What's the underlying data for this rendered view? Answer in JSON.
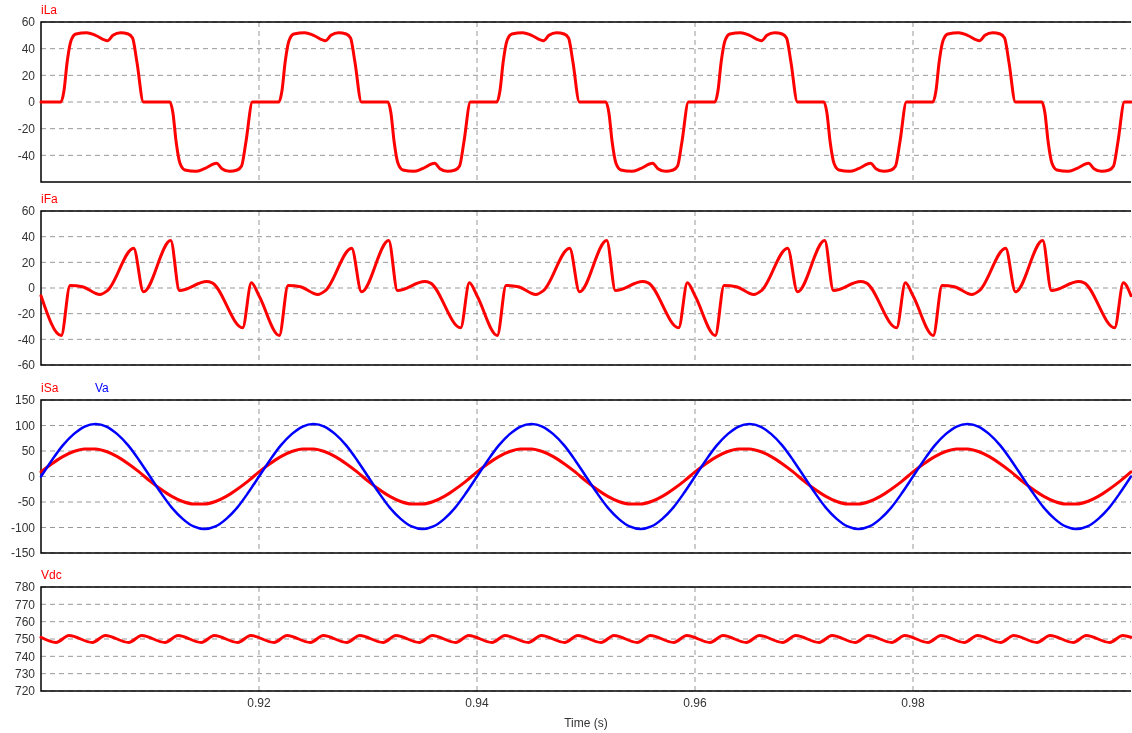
{
  "chart_data": [
    {
      "type": "line",
      "xlim": [
        0.9,
        1.0
      ],
      "xticks": [
        0.92,
        0.94,
        0.96,
        0.98
      ],
      "ylim": [
        -60,
        60
      ],
      "yticks": [
        -40,
        -20,
        0,
        20,
        40,
        60
      ],
      "grid": true,
      "legend": "top left",
      "tick_labels": "y",
      "series": [
        {
          "name": "iLa",
          "color": "#ff0000",
          "x": [
            0.9,
            0.90183,
            0.9021,
            0.9024,
            0.90275,
            0.9032,
            0.9042,
            0.905,
            0.9061,
            0.9066,
            0.9073,
            0.908,
            0.9084,
            0.9088,
            0.9094,
            0.91183,
            0.9121,
            0.9124,
            0.91275,
            0.9132,
            0.9142,
            0.915,
            0.9161,
            0.9166,
            0.9173,
            0.918,
            0.9184,
            0.9188,
            0.9194,
            0.92,
            0.92183,
            0.9221,
            0.9224,
            0.92275,
            0.9232,
            0.9242,
            0.925,
            0.9261,
            0.9266,
            0.9273,
            0.928,
            0.9284,
            0.9288,
            0.9294,
            0.93183,
            0.9321,
            0.9324,
            0.93275,
            0.9332,
            0.9342,
            0.935,
            0.9361,
            0.9366,
            0.9373,
            0.938,
            0.9384,
            0.9388,
            0.9394,
            0.94,
            0.94183,
            0.9421,
            0.9424,
            0.94275,
            0.9432,
            0.9442,
            0.945,
            0.9461,
            0.9466,
            0.9473,
            0.948,
            0.9484,
            0.9488,
            0.9494,
            0.95183,
            0.9521,
            0.9524,
            0.95275,
            0.9532,
            0.9542,
            0.955,
            0.9561,
            0.9566,
            0.9573,
            0.958,
            0.9584,
            0.9588,
            0.9594,
            0.96,
            0.96183,
            0.9621,
            0.9624,
            0.96275,
            0.9632,
            0.9642,
            0.965,
            0.9661,
            0.9666,
            0.9673,
            0.968,
            0.9684,
            0.9688,
            0.9694,
            0.97183,
            0.9721,
            0.9724,
            0.97275,
            0.9732,
            0.9742,
            0.975,
            0.9761,
            0.9766,
            0.9773,
            0.978,
            0.9784,
            0.9788,
            0.9794,
            0.98,
            0.98183,
            0.9821,
            0.9824,
            0.98275,
            0.9832,
            0.9842,
            0.985,
            0.9861,
            0.9866,
            0.9873,
            0.988,
            0.9884,
            0.9888,
            0.9894,
            0.99183,
            0.9921,
            0.9924,
            0.99275,
            0.9932,
            0.9942,
            0.995,
            0.9961,
            0.9966,
            0.9973,
            0.998,
            0.9984,
            0.9988,
            0.9994,
            1.0
          ],
          "values": [
            0,
            0,
            8,
            30,
            46,
            51,
            52,
            50,
            46,
            50,
            52,
            51,
            48,
            30,
            0,
            0,
            -8,
            -30,
            -46,
            -51,
            -52,
            -50,
            -46,
            -50,
            -52,
            -51,
            -48,
            -30,
            0,
            0,
            0,
            8,
            30,
            46,
            51,
            52,
            50,
            46,
            50,
            52,
            51,
            48,
            30,
            0,
            0,
            -8,
            -30,
            -46,
            -51,
            -52,
            -50,
            -46,
            -50,
            -52,
            -51,
            -48,
            -30,
            0,
            0,
            0,
            8,
            30,
            46,
            51,
            52,
            50,
            46,
            50,
            52,
            51,
            48,
            30,
            0,
            0,
            -8,
            -30,
            -46,
            -51,
            -52,
            -50,
            -46,
            -50,
            -52,
            -51,
            -48,
            -30,
            0,
            0,
            0,
            8,
            30,
            46,
            51,
            52,
            50,
            46,
            50,
            52,
            51,
            48,
            30,
            0,
            0,
            -8,
            -30,
            -46,
            -51,
            -52,
            -50,
            -46,
            -50,
            -52,
            -51,
            -48,
            -30,
            0,
            0,
            0,
            8,
            30,
            46,
            51,
            52,
            50,
            46,
            50,
            52,
            51,
            48,
            30,
            0,
            0,
            -8,
            -30,
            -46,
            -51,
            -52,
            -50,
            -46,
            -50,
            -52,
            -51,
            -48,
            -30,
            0,
            0
          ]
        }
      ]
    },
    {
      "type": "line",
      "xlim": [
        0.9,
        1.0
      ],
      "xticks": [
        0.92,
        0.94,
        0.96,
        0.98
      ],
      "ylim": [
        -60,
        60
      ],
      "yticks": [
        -60,
        -40,
        -20,
        0,
        20,
        40,
        60
      ],
      "grid": true,
      "legend": "top left",
      "tick_labels": "y",
      "series": [
        {
          "name": "iFa",
          "color": "#ff0000",
          "x": [
            0.9,
            0.90186,
            0.90267,
            0.9038,
            0.9054,
            0.9061,
            0.9085,
            0.9094,
            0.9119,
            0.9127,
            0.9152,
            0.9157,
            0.9185,
            0.9193,
            0.92,
            0.92186,
            0.92267,
            0.9238,
            0.9254,
            0.9261,
            0.9285,
            0.9294,
            0.9319,
            0.9327,
            0.9352,
            0.9357,
            0.9385,
            0.9393,
            0.94,
            0.94186,
            0.94267,
            0.9438,
            0.9454,
            0.9461,
            0.9485,
            0.9494,
            0.9519,
            0.9527,
            0.9552,
            0.9557,
            0.9585,
            0.9593,
            0.96,
            0.96186,
            0.96267,
            0.9638,
            0.9654,
            0.9661,
            0.9685,
            0.9694,
            0.9719,
            0.9727,
            0.9752,
            0.9757,
            0.9785,
            0.9793,
            0.98,
            0.98186,
            0.98267,
            0.9838,
            0.9854,
            0.9861,
            0.9885,
            0.9894,
            0.9919,
            0.9927,
            0.9952,
            0.9957,
            0.9985,
            0.9993,
            1.0
          ],
          "values": [
            -6,
            -37,
            2,
            1,
            -5,
            -2,
            31,
            -3,
            37,
            -2,
            5,
            4,
            -31,
            4,
            -6,
            -37,
            2,
            1,
            -5,
            -2,
            31,
            -3,
            37,
            -2,
            5,
            4,
            -31,
            4,
            -6,
            -37,
            2,
            1,
            -5,
            -2,
            31,
            -3,
            37,
            -2,
            5,
            4,
            -31,
            4,
            -6,
            -37,
            2,
            1,
            -5,
            -2,
            31,
            -3,
            37,
            -2,
            5,
            4,
            -31,
            4,
            -6,
            -37,
            2,
            1,
            -5,
            -2,
            31,
            -3,
            37,
            -2,
            5,
            4,
            -31,
            4,
            -6
          ]
        }
      ]
    },
    {
      "type": "line",
      "xlim": [
        0.9,
        1.0
      ],
      "xticks": [
        0.92,
        0.94,
        0.96,
        0.98
      ],
      "ylim": [
        -150,
        150
      ],
      "yticks": [
        -150,
        -100,
        -50,
        0,
        50,
        100,
        150
      ],
      "grid": true,
      "legend": "top left",
      "tick_labels": "y",
      "x": [
        0.9,
        0.901,
        0.902,
        0.903,
        0.904,
        0.905,
        0.906,
        0.907,
        0.908,
        0.909,
        0.91,
        0.911,
        0.912,
        0.913,
        0.914,
        0.915,
        0.916,
        0.917,
        0.918,
        0.919,
        0.92,
        0.921,
        0.922,
        0.923,
        0.924,
        0.925,
        0.926,
        0.927,
        0.928,
        0.929,
        0.93,
        0.931,
        0.932,
        0.933,
        0.934,
        0.935,
        0.936,
        0.937,
        0.938,
        0.939,
        0.94,
        0.941,
        0.942,
        0.943,
        0.944,
        0.945,
        0.946,
        0.947,
        0.948,
        0.949,
        0.95,
        0.951,
        0.952,
        0.953,
        0.954,
        0.955,
        0.956,
        0.957,
        0.958,
        0.959,
        0.96,
        0.961,
        0.962,
        0.963,
        0.964,
        0.965,
        0.966,
        0.967,
        0.968,
        0.969,
        0.97,
        0.971,
        0.972,
        0.973,
        0.974,
        0.975,
        0.976,
        0.977,
        0.978,
        0.979,
        0.98,
        0.981,
        0.982,
        0.983,
        0.984,
        0.985,
        0.986,
        0.987,
        0.988,
        0.989,
        0.99,
        0.991,
        0.992,
        0.993,
        0.994,
        0.995,
        0.996,
        0.997,
        0.998,
        0.999,
        1.0
      ],
      "series": [
        {
          "name": "iSa",
          "color": "#ff0000",
          "values": [
            9,
            25,
            39,
            49,
            54,
            54,
            49,
            39,
            25,
            9,
            -9,
            -25,
            -39,
            -49,
            -54,
            -54,
            -49,
            -39,
            -25,
            -9,
            9,
            25,
            39,
            49,
            54,
            54,
            49,
            39,
            25,
            9,
            -9,
            -25,
            -39,
            -49,
            -54,
            -54,
            -49,
            -39,
            -25,
            -9,
            9,
            25,
            39,
            49,
            54,
            54,
            49,
            39,
            25,
            9,
            -9,
            -25,
            -39,
            -49,
            -54,
            -54,
            -49,
            -39,
            -25,
            -9,
            9,
            25,
            39,
            49,
            54,
            54,
            49,
            39,
            25,
            9,
            -9,
            -25,
            -39,
            -49,
            -54,
            -54,
            -49,
            -39,
            -25,
            -9,
            9,
            25,
            39,
            49,
            54,
            54,
            49,
            39,
            25,
            9,
            -9,
            -25,
            -39,
            -49,
            -54,
            -54,
            -49,
            -39,
            -25,
            -9,
            9
          ]
        },
        {
          "name": "Va",
          "color": "#0000ff",
          "values": [
            0,
            32,
            61,
            83,
            98,
            103,
            98,
            83,
            61,
            32,
            0,
            -32,
            -61,
            -83,
            -98,
            -103,
            -98,
            -83,
            -61,
            -32,
            0,
            32,
            61,
            83,
            98,
            103,
            98,
            83,
            61,
            32,
            0,
            -32,
            -61,
            -83,
            -98,
            -103,
            -98,
            -83,
            -61,
            -32,
            0,
            32,
            61,
            83,
            98,
            103,
            98,
            83,
            61,
            32,
            0,
            -32,
            -61,
            -83,
            -98,
            -103,
            -98,
            -83,
            -61,
            -32,
            0,
            32,
            61,
            83,
            98,
            103,
            98,
            83,
            61,
            32,
            0,
            -32,
            -61,
            -83,
            -98,
            -103,
            -98,
            -83,
            -61,
            -32,
            0,
            32,
            61,
            83,
            98,
            103,
            98,
            83,
            61,
            32,
            0,
            -32,
            -61,
            -83,
            -98,
            -103,
            -98,
            -83,
            -61,
            -32,
            0
          ]
        }
      ]
    },
    {
      "type": "line",
      "xlim": [
        0.9,
        1.0
      ],
      "xticks": [
        0.92,
        0.94,
        0.96,
        0.98
      ],
      "ylim": [
        720,
        780
      ],
      "yticks": [
        720,
        730,
        740,
        750,
        760,
        770,
        780
      ],
      "grid": true,
      "legend": "top left",
      "xlabel": "Time (s)",
      "series": [
        {
          "name": "Vdc",
          "color": "#ff0000",
          "x": [
            0.9,
            0.90138,
            0.90257,
            0.90471,
            0.9059,
            0.90805,
            0.90924,
            0.91138,
            0.91257,
            0.91471,
            0.9159,
            0.91805,
            0.91924,
            0.92138,
            0.92257,
            0.92471,
            0.9259,
            0.92805,
            0.92924,
            0.93138,
            0.93257,
            0.93471,
            0.9359,
            0.93805,
            0.93924,
            0.94138,
            0.94257,
            0.94471,
            0.9459,
            0.94805,
            0.94924,
            0.95138,
            0.95257,
            0.95471,
            0.9559,
            0.95805,
            0.95924,
            0.96138,
            0.96257,
            0.96471,
            0.9659,
            0.96805,
            0.96924,
            0.97138,
            0.97257,
            0.97471,
            0.9759,
            0.97805,
            0.97924,
            0.98138,
            0.98257,
            0.98471,
            0.9859,
            0.98805,
            0.98924,
            0.99138,
            0.99257,
            0.99471,
            0.9959,
            0.99805,
            0.99924,
            1.0
          ],
          "values": [
            751,
            748,
            752,
            748,
            752,
            748,
            752,
            748,
            752,
            748,
            752,
            748,
            752,
            748,
            752,
            748,
            752,
            748,
            752,
            748,
            752,
            748,
            752,
            748,
            752,
            748,
            752,
            748,
            752,
            748,
            752,
            748,
            752,
            748,
            752,
            748,
            752,
            748,
            752,
            748,
            752,
            748,
            752,
            748,
            752,
            748,
            752,
            748,
            752,
            748,
            752,
            748,
            752,
            748,
            752,
            748,
            752,
            748,
            752,
            748,
            752,
            751
          ]
        }
      ]
    }
  ]
}
